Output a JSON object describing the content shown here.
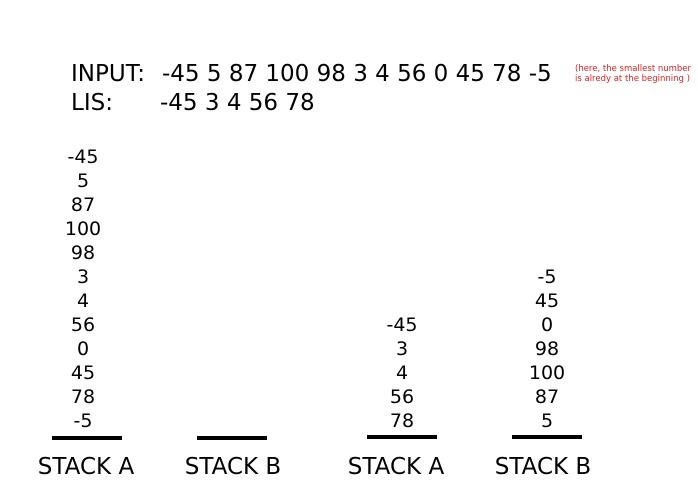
{
  "input": {
    "label": "INPUT:",
    "value": "-45 5 87 100 98 3 4 56 0 45 78 -5",
    "note_line1": "(here, the smallest number",
    "note_line2": "is alredy at the beginning )"
  },
  "lis": {
    "label": "LIS:",
    "value": "-45 3 4 56 78"
  },
  "colors": {
    "note": "#e02020",
    "text": "#000000",
    "background": "#ffffff"
  },
  "stacks": [
    {
      "label": "STACK A",
      "items": [
        "-45",
        "5",
        "87",
        "100",
        "98",
        "3",
        "4",
        "56",
        "0",
        "45",
        "78",
        "-5"
      ]
    },
    {
      "label": "STACK B",
      "items": []
    },
    {
      "label": "STACK A",
      "items": [
        "-45",
        "3",
        "4",
        "56",
        "78"
      ]
    },
    {
      "label": "STACK B",
      "items": [
        "-5",
        "45",
        "0",
        "98",
        "100",
        "87",
        "5"
      ]
    }
  ]
}
